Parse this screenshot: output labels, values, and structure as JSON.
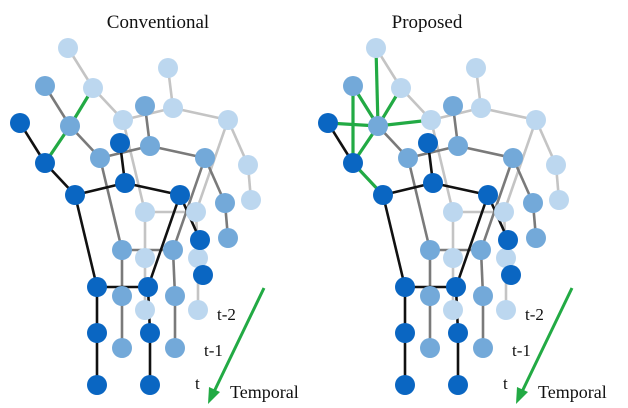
{
  "panels": [
    {
      "title": "Conventional",
      "extra_links": "conventional"
    },
    {
      "title": "Proposed",
      "extra_links": "proposed"
    }
  ],
  "time_labels": [
    "t-2",
    "t-1",
    "t"
  ],
  "temporal_label": "Temporal",
  "colors": {
    "frame_t": "#0a66c2",
    "frame_t1": "#73a9d9",
    "frame_t2": "#bcd7ef",
    "edge_t": "#111111",
    "edge_t1": "#7a7a7a",
    "edge_t2": "#c4c4c4",
    "highlight": "#22aa44"
  }
}
